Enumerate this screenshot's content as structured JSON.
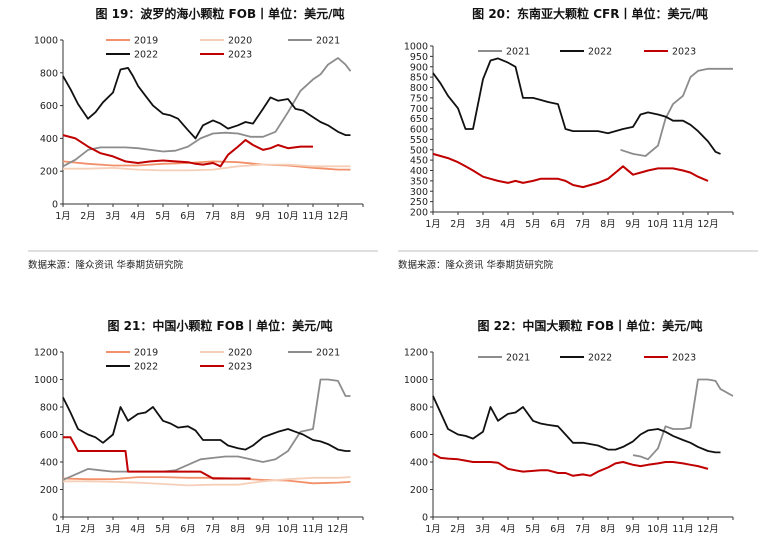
{
  "chart_data": [
    {
      "type": "line",
      "title": "图 19：波罗的海小颗粒 FOB丨单位：美元/吨",
      "source": "数据来源：隆众资讯  华泰期货研究院",
      "categories": [
        "1月",
        "2月",
        "3月",
        "4月",
        "5月",
        "6月",
        "7月",
        "8月",
        "9月",
        "10月",
        "11月",
        "12月"
      ],
      "ylim": [
        0,
        1000
      ],
      "yticks": [
        0,
        200,
        400,
        600,
        800,
        1000
      ],
      "grid": false,
      "legend": "top",
      "series": [
        {
          "name": "2019",
          "color": "#f2906a",
          "width": 1.8,
          "x": [
            1,
            2,
            3,
            4,
            5,
            6,
            7,
            8,
            9,
            10,
            11,
            11.5,
            12,
            12.5
          ],
          "values": [
            260,
            245,
            235,
            235,
            245,
            250,
            260,
            255,
            240,
            235,
            220,
            215,
            210,
            210
          ]
        },
        {
          "name": "2020",
          "color": "#f6cfb8",
          "width": 1.8,
          "x": [
            1,
            2,
            3,
            4,
            5,
            6,
            7,
            8,
            9,
            10,
            11,
            12,
            12.5
          ],
          "values": [
            215,
            215,
            220,
            210,
            205,
            205,
            210,
            230,
            240,
            240,
            230,
            230,
            230
          ]
        },
        {
          "name": "2021",
          "color": "#8c8c8c",
          "width": 1.8,
          "x": [
            1,
            1.5,
            2,
            2.5,
            3,
            3.5,
            4,
            4.5,
            5,
            5.5,
            6,
            6.5,
            7,
            7.5,
            8,
            8.5,
            9,
            9.5,
            10,
            10.5,
            11,
            11.3,
            11.6,
            12,
            12.3,
            12.5
          ],
          "values": [
            230,
            270,
            330,
            345,
            345,
            345,
            340,
            330,
            320,
            325,
            350,
            400,
            430,
            435,
            430,
            410,
            410,
            440,
            560,
            690,
            760,
            790,
            850,
            890,
            850,
            810
          ]
        },
        {
          "name": "2022",
          "color": "#111111",
          "width": 1.8,
          "x": [
            1,
            1.3,
            1.6,
            2,
            2.3,
            2.6,
            3,
            3.3,
            3.6,
            3.8,
            4,
            4.3,
            4.6,
            5,
            5.3,
            5.6,
            6,
            6.3,
            6.6,
            7,
            7.3,
            7.6,
            8,
            8.3,
            8.6,
            9,
            9.3,
            9.6,
            10,
            10.3,
            10.6,
            11,
            11.3,
            11.6,
            12,
            12.3,
            12.5
          ],
          "values": [
            780,
            700,
            610,
            520,
            560,
            620,
            680,
            820,
            830,
            780,
            720,
            660,
            600,
            550,
            540,
            520,
            450,
            400,
            480,
            510,
            490,
            460,
            480,
            500,
            490,
            580,
            650,
            630,
            640,
            580,
            570,
            530,
            500,
            480,
            440,
            420,
            420
          ]
        },
        {
          "name": "2023",
          "color": "#c00000",
          "width": 2,
          "x": [
            1,
            1.5,
            2,
            2.5,
            3,
            3.5,
            4,
            4.5,
            5,
            5.5,
            6,
            6.3,
            6.6,
            7,
            7.3,
            7.6,
            8,
            8.3,
            8.6,
            9,
            9.3,
            9.6,
            10,
            10.5,
            11
          ],
          "values": [
            420,
            400,
            350,
            310,
            290,
            260,
            250,
            260,
            265,
            260,
            255,
            245,
            240,
            250,
            230,
            300,
            350,
            390,
            360,
            330,
            340,
            360,
            340,
            350,
            350
          ]
        }
      ]
    },
    {
      "type": "line",
      "title": "图 20：东南亚大颗粒 CFR丨单位：美元/吨",
      "source": "数据来源：隆众资讯  华泰期货研究院",
      "categories": [
        "1月",
        "2月",
        "3月",
        "4月",
        "5月",
        "6月",
        "7月",
        "8月",
        "9月",
        "10月",
        "11月",
        "12月"
      ],
      "ylim": [
        200,
        1000
      ],
      "yticks": [
        200,
        250,
        300,
        350,
        400,
        450,
        500,
        550,
        600,
        650,
        700,
        750,
        800,
        850,
        900,
        950,
        1000
      ],
      "grid": false,
      "legend": "top",
      "series": [
        {
          "name": "2021",
          "color": "#8c8c8c",
          "width": 1.8,
          "x": [
            8.5,
            9,
            9.5,
            10,
            10.3,
            10.6,
            11,
            11.3,
            11.6,
            12,
            12.5,
            13
          ],
          "values": [
            500,
            480,
            470,
            520,
            650,
            720,
            760,
            850,
            880,
            890,
            890,
            890
          ]
        },
        {
          "name": "2022",
          "color": "#111111",
          "width": 1.8,
          "x": [
            1,
            1.3,
            1.6,
            2,
            2.3,
            2.6,
            3,
            3.3,
            3.6,
            4,
            4.3,
            4.6,
            5,
            5.3,
            5.6,
            6,
            6.3,
            6.6,
            7,
            7.3,
            7.6,
            8,
            8.3,
            8.6,
            9,
            9.3,
            9.6,
            10,
            10.3,
            10.6,
            11,
            11.3,
            11.6,
            12,
            12.3,
            12.5
          ],
          "values": [
            870,
            820,
            760,
            700,
            600,
            600,
            840,
            930,
            940,
            920,
            900,
            750,
            750,
            740,
            730,
            720,
            600,
            590,
            590,
            590,
            590,
            580,
            590,
            600,
            610,
            670,
            680,
            670,
            660,
            640,
            640,
            620,
            590,
            540,
            490,
            480
          ]
        },
        {
          "name": "2023",
          "color": "#c00000",
          "width": 2,
          "x": [
            1,
            1.3,
            1.6,
            2,
            2.3,
            2.6,
            3,
            3.3,
            3.6,
            4,
            4.3,
            4.6,
            5,
            5.3,
            5.6,
            6,
            6.3,
            6.6,
            7,
            7.3,
            7.6,
            8,
            8.3,
            8.6,
            9,
            9.3,
            9.6,
            10,
            10.3,
            10.6,
            11,
            11.3,
            11.6,
            12
          ],
          "values": [
            480,
            470,
            460,
            440,
            420,
            400,
            370,
            360,
            350,
            340,
            350,
            340,
            350,
            360,
            360,
            360,
            350,
            330,
            320,
            330,
            340,
            360,
            390,
            420,
            380,
            390,
            400,
            410,
            410,
            410,
            400,
            390,
            370,
            350
          ]
        }
      ]
    },
    {
      "type": "line",
      "title": "图 21：中国小颗粒 FOB丨单位：美元/吨",
      "source": "",
      "categories": [
        "1月",
        "2月",
        "3月",
        "4月",
        "5月",
        "6月",
        "7月",
        "8月",
        "9月",
        "10月",
        "11月",
        "12月"
      ],
      "ylim": [
        0,
        1200
      ],
      "yticks": [
        0,
        200,
        400,
        600,
        800,
        1000,
        1200
      ],
      "grid": false,
      "legend": "top",
      "series": [
        {
          "name": "2019",
          "color": "#f2906a",
          "width": 1.8,
          "x": [
            1,
            2,
            3,
            4,
            5,
            6,
            7,
            8,
            9,
            10,
            11,
            12,
            12.5
          ],
          "values": [
            280,
            275,
            275,
            290,
            290,
            285,
            285,
            280,
            270,
            265,
            245,
            250,
            255
          ]
        },
        {
          "name": "2020",
          "color": "#f6cfb8",
          "width": 1.8,
          "x": [
            1,
            2,
            3,
            4,
            5,
            6,
            7,
            8,
            9,
            10,
            11,
            12,
            12.5
          ],
          "values": [
            260,
            260,
            255,
            250,
            240,
            230,
            235,
            235,
            260,
            275,
            285,
            285,
            290
          ]
        },
        {
          "name": "2021",
          "color": "#8c8c8c",
          "width": 1.8,
          "x": [
            1,
            1.5,
            2,
            2.5,
            3,
            3.5,
            4,
            4.5,
            5,
            5.5,
            6,
            6.5,
            7,
            7.5,
            8,
            8.5,
            9,
            9.5,
            10,
            10.5,
            11,
            11.3,
            11.6,
            12,
            12.3,
            12.5
          ],
          "values": [
            270,
            310,
            350,
            340,
            330,
            330,
            330,
            330,
            330,
            340,
            380,
            420,
            430,
            440,
            440,
            420,
            400,
            420,
            480,
            620,
            640,
            1000,
            1000,
            990,
            880,
            880
          ]
        },
        {
          "name": "2022",
          "color": "#111111",
          "width": 1.8,
          "x": [
            1,
            1.3,
            1.6,
            2,
            2.3,
            2.6,
            3,
            3.3,
            3.6,
            4,
            4.3,
            4.6,
            5,
            5.3,
            5.6,
            6,
            6.3,
            6.6,
            7,
            7.3,
            7.6,
            8,
            8.3,
            8.6,
            9,
            9.3,
            9.6,
            10,
            10.3,
            10.6,
            11,
            11.3,
            11.6,
            12,
            12.3,
            12.5
          ],
          "values": [
            870,
            760,
            640,
            600,
            580,
            540,
            600,
            800,
            700,
            750,
            760,
            800,
            700,
            680,
            650,
            660,
            630,
            560,
            560,
            560,
            520,
            500,
            490,
            520,
            580,
            600,
            620,
            640,
            620,
            600,
            560,
            550,
            530,
            490,
            480,
            480
          ]
        },
        {
          "name": "2023",
          "color": "#c00000",
          "width": 2,
          "x": [
            1,
            1.3,
            1.6,
            2,
            2.5,
            3,
            3.5,
            3.6,
            4,
            4.5,
            5,
            5.5,
            6,
            6.5,
            7,
            7.5,
            8,
            8.5
          ],
          "values": [
            580,
            580,
            480,
            480,
            480,
            480,
            480,
            330,
            330,
            330,
            330,
            330,
            330,
            330,
            280,
            280,
            280,
            280
          ]
        }
      ]
    },
    {
      "type": "line",
      "title": "图 22：中国大颗粒 FOB丨单位：美元/吨",
      "source": "",
      "categories": [
        "1月",
        "2月",
        "3月",
        "4月",
        "5月",
        "6月",
        "7月",
        "8月",
        "9月",
        "10月",
        "11月",
        "12月"
      ],
      "ylim": [
        0,
        1200
      ],
      "yticks": [
        0,
        200,
        400,
        600,
        800,
        1000,
        1200
      ],
      "grid": false,
      "legend": "top",
      "series": [
        {
          "name": "2021",
          "color": "#8c8c8c",
          "width": 1.8,
          "x": [
            9,
            9.3,
            9.6,
            10,
            10.3,
            10.6,
            11,
            11.3,
            11.6,
            12,
            12.3,
            12.5,
            13
          ],
          "values": [
            450,
            440,
            420,
            500,
            660,
            640,
            640,
            650,
            1000,
            1000,
            990,
            930,
            880
          ]
        },
        {
          "name": "2022",
          "color": "#111111",
          "width": 1.8,
          "x": [
            1,
            1.3,
            1.6,
            2,
            2.3,
            2.6,
            3,
            3.3,
            3.6,
            4,
            4.3,
            4.6,
            5,
            5.3,
            5.6,
            6,
            6.3,
            6.6,
            7,
            7.3,
            7.6,
            8,
            8.3,
            8.6,
            9,
            9.3,
            9.6,
            10,
            10.3,
            10.6,
            11,
            11.3,
            11.6,
            12,
            12.3,
            12.5
          ],
          "values": [
            880,
            760,
            640,
            600,
            590,
            570,
            620,
            800,
            700,
            750,
            760,
            800,
            700,
            680,
            670,
            660,
            600,
            540,
            540,
            530,
            520,
            490,
            490,
            510,
            550,
            600,
            630,
            640,
            620,
            590,
            560,
            540,
            510,
            480,
            470,
            470
          ]
        },
        {
          "name": "2023",
          "color": "#c00000",
          "width": 2,
          "x": [
            1,
            1.3,
            1.6,
            2,
            2.3,
            2.6,
            3,
            3.3,
            3.6,
            4,
            4.3,
            4.6,
            5,
            5.3,
            5.6,
            6,
            6.3,
            6.6,
            7,
            7.3,
            7.6,
            8,
            8.3,
            8.6,
            9,
            9.3,
            9.6,
            10,
            10.3,
            10.6,
            11,
            11.3,
            11.6,
            12
          ],
          "values": [
            460,
            430,
            425,
            420,
            410,
            400,
            400,
            400,
            395,
            350,
            340,
            330,
            335,
            340,
            340,
            320,
            320,
            300,
            310,
            300,
            330,
            360,
            390,
            400,
            380,
            370,
            380,
            390,
            400,
            400,
            390,
            380,
            370,
            350
          ]
        }
      ]
    }
  ]
}
